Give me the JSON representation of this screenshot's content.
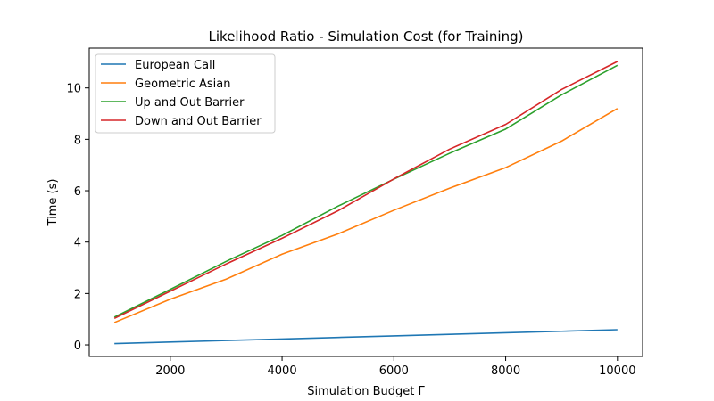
{
  "chart_data": {
    "type": "line",
    "title": "Likelihood Ratio - Simulation Cost (for Training)",
    "xlabel": "Simulation Budget Γ",
    "ylabel": "Time (s)",
    "x": [
      1000,
      2000,
      3000,
      4000,
      5000,
      6000,
      7000,
      8000,
      9000,
      10000
    ],
    "xlim": [
      550,
      10450
    ],
    "ylim": [
      -0.45,
      11.55
    ],
    "xticks": [
      2000,
      4000,
      6000,
      8000,
      10000
    ],
    "yticks": [
      0,
      2,
      4,
      6,
      8,
      10
    ],
    "grid": false,
    "legend_position": "top-left",
    "series": [
      {
        "name": "European Call",
        "color": "#1f77b4",
        "values": [
          0.05,
          0.11,
          0.17,
          0.23,
          0.29,
          0.35,
          0.41,
          0.47,
          0.53,
          0.59
        ]
      },
      {
        "name": "Geometric Asian",
        "color": "#ff7f0e",
        "values": [
          0.87,
          1.78,
          2.56,
          3.53,
          4.32,
          5.24,
          6.1,
          6.9,
          7.93,
          9.2
        ]
      },
      {
        "name": "Up and Out Barrier",
        "color": "#2ca02c",
        "values": [
          1.08,
          2.16,
          3.25,
          4.26,
          5.4,
          6.45,
          7.46,
          8.4,
          9.73,
          10.88
        ]
      },
      {
        "name": "Down and Out Barrier",
        "color": "#d62728",
        "values": [
          1.03,
          2.09,
          3.15,
          4.15,
          5.22,
          6.46,
          7.62,
          8.58,
          9.94,
          11.03
        ]
      }
    ]
  }
}
